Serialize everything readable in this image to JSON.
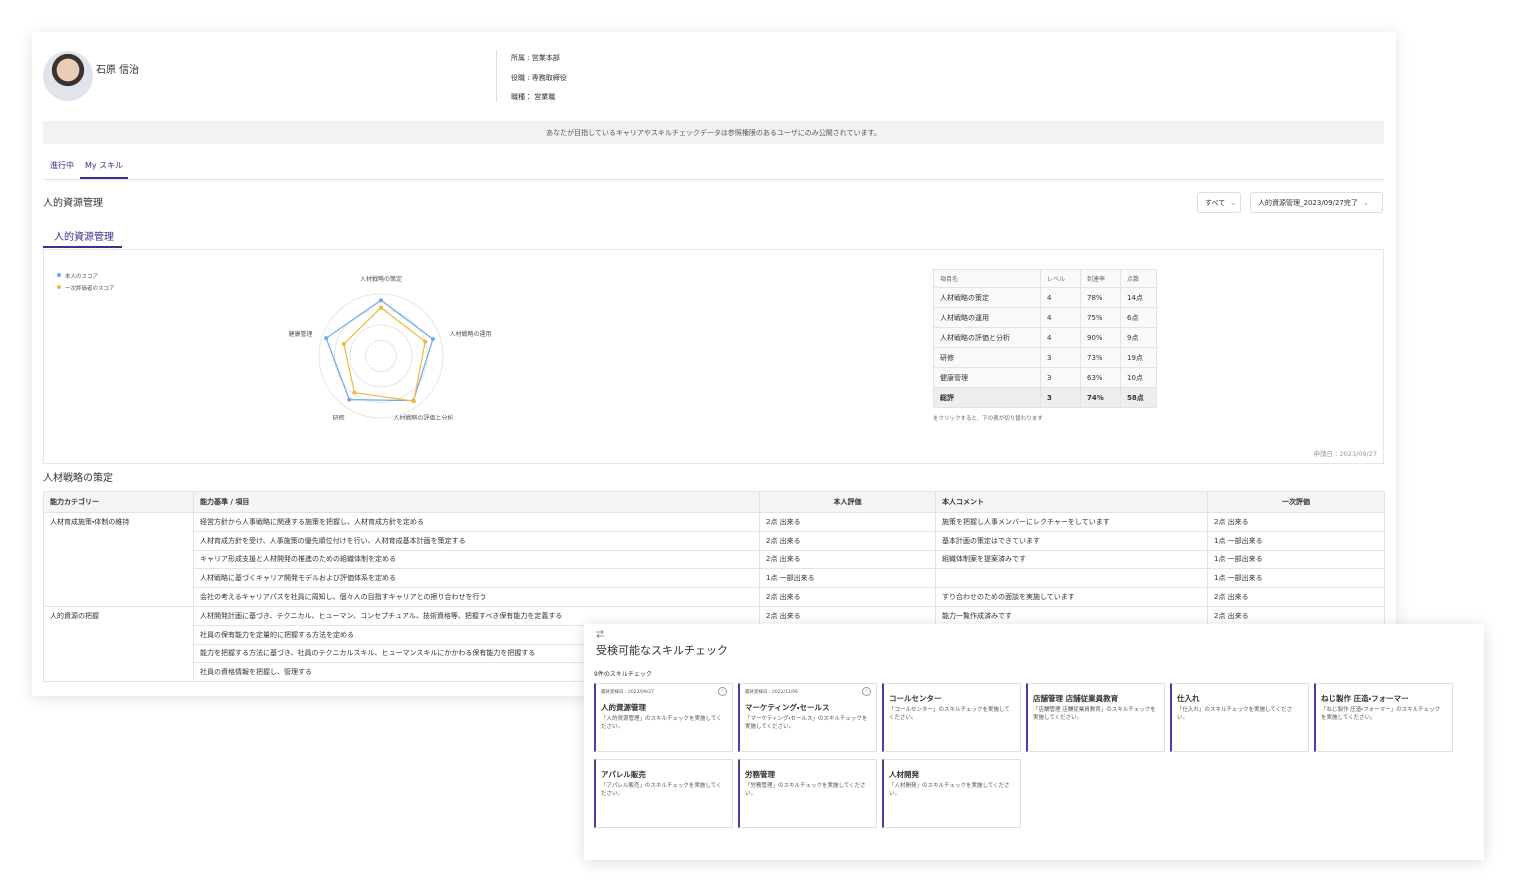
{
  "profile": {
    "name": "石原 信治",
    "fields": [
      "所属 : 営業本部",
      "役職 : 専務取締役",
      "職種： 営業職"
    ]
  },
  "notice": "あなたが目指しているキャリアやスキルチェックデータは参照権限のあるユーザにのみ公開されています。",
  "tabs": [
    "進行中",
    "My スキル"
  ],
  "section_title": "人的資源管理",
  "filters": [
    "すべて",
    "人的資源管理_2023/09/27完了"
  ],
  "subtab": "人的資源管理",
  "chart_data": {
    "type": "radar",
    "axes": [
      "人材戦略の策定",
      "人材戦略の運用",
      "人材戦略の評価と分析",
      "研修",
      "健康管理"
    ],
    "rlim": [
      0,
      100
    ],
    "rticks": [
      25,
      50,
      75,
      100
    ],
    "series": [
      {
        "name": "本人のスコア",
        "color": "#6fa8e8",
        "values": [
          90,
          88,
          89,
          87,
          93
        ]
      },
      {
        "name": "一次評価者のスコア",
        "color": "#efb93c",
        "values": [
          78,
          75,
          90,
          73,
          63
        ]
      }
    ]
  },
  "score_table": {
    "headers": [
      "項目名",
      "レベル",
      "到達率",
      "点数"
    ],
    "rows": [
      [
        "人材戦略の策定",
        "4",
        "78%",
        "14点"
      ],
      [
        "人材戦略の運用",
        "4",
        "75%",
        "6点"
      ],
      [
        "人材戦略の評価と分析",
        "4",
        "90%",
        "9点"
      ],
      [
        "研修",
        "3",
        "73%",
        "19点"
      ],
      [
        "健康管理",
        "3",
        "63%",
        "10点"
      ],
      [
        "総評",
        "3",
        "74%",
        "58点"
      ]
    ],
    "note": "をクリックすると、下の表が切り替わります",
    "date": "申請日：2023/09/27"
  },
  "detail": {
    "title": "人材戦略の策定",
    "headers": [
      "能力カテゴリー",
      "能力基準 / 項目",
      "本人評価",
      "本人コメント",
      "一次評価"
    ],
    "groups": [
      {
        "category": "人材育成施策・体制の維持",
        "items": [
          {
            "criterion": "経営方針から人事戦略に関連する施策を把握し、人材育成方針を定める",
            "self": "2点 出来る",
            "comment": "施策を把握し人事メンバーにレクチャーをしています",
            "evaluator": "2点 出来る"
          },
          {
            "criterion": "人材育成方針を受け、人事施策の優先順位付けを行い、人材育成基本計画を策定する",
            "self": "2点 出来る",
            "comment": "基本計画の策定はできています",
            "evaluator": "1点 一部出来る"
          },
          {
            "criterion": "キャリア形成支援と人材開発の推進のための組織体制を定める",
            "self": "2点 出来る",
            "comment": "組織体制案を提案済みです",
            "evaluator": "1点 一部出来る"
          },
          {
            "criterion": "人材戦略に基づくキャリア開発モデルおよび評価体系を定める",
            "self": "1点 一部出来る",
            "evaluator": "1点 一部出来る"
          },
          {
            "criterion": "会社の考えるキャリアパスを社員に周知し、個々人の目指すキャリアとの擦り合わせを行う",
            "self": "2点 出来る",
            "comment": "すり合わせのための面談を実施しています",
            "evaluator": "2点 出来る"
          }
        ]
      },
      {
        "category": "人的資源の把握",
        "items": [
          {
            "criterion": "人材開発計画に基づき、テクニカル、ヒューマン、コンセプチュアル、技術資格等、把握すべき保有能力を定義する",
            "self": "2点 出来る",
            "comment": "能力一覧作成済みです",
            "evaluator": "2点 出来る"
          },
          {
            "criterion": "社員の保有能力を定量的に把握する方法を定める"
          },
          {
            "criterion": "能力を把握する方法に基づき、社員のテクニカルスキル、ヒューマンスキルにかかわる保有能力を把握する"
          },
          {
            "criterion": "社員の資格情報を把握し、管理する"
          }
        ]
      }
    ]
  },
  "skill_check": {
    "title": "受検可能なスキルチェック",
    "count": "9件のスキルチェック",
    "cards": [
      {
        "date": "最終受検日：2023/09/27",
        "title": "人的資源管理",
        "description": "「人的資源管理」のスキルチェックを実施してください。"
      },
      {
        "date": "最終受検日：2022/11/06",
        "title": "マーケティング・セールス",
        "description": "「マーケティング・セールス」のスキルチェックを実施してください。"
      },
      {
        "title": "コールセンター",
        "description": "「コールセンター」のスキルチェックを実施してください。"
      },
      {
        "title": "店舗管理 店舗従業員教育",
        "description": "「店舗管理 店舗従業員教育」のスキルチェックを実施してください。"
      },
      {
        "title": "仕入れ",
        "description": "「仕入れ」のスキルチェックを実施してください。"
      },
      {
        "title": "ねじ製作 圧造・フォーマー",
        "description": "「ねじ製作 圧造・フォーマー」のスキルチェックを実施してください。"
      },
      {
        "title": "アパレル販売",
        "description": "「アパレル販売」のスキルチェックを実施してください。"
      },
      {
        "title": "労務管理",
        "description": "「労務管理」のスキルチェックを実施してください。"
      },
      {
        "title": "人材開発",
        "description": "「人材開発」のスキルチェックを実施してください。"
      }
    ]
  }
}
